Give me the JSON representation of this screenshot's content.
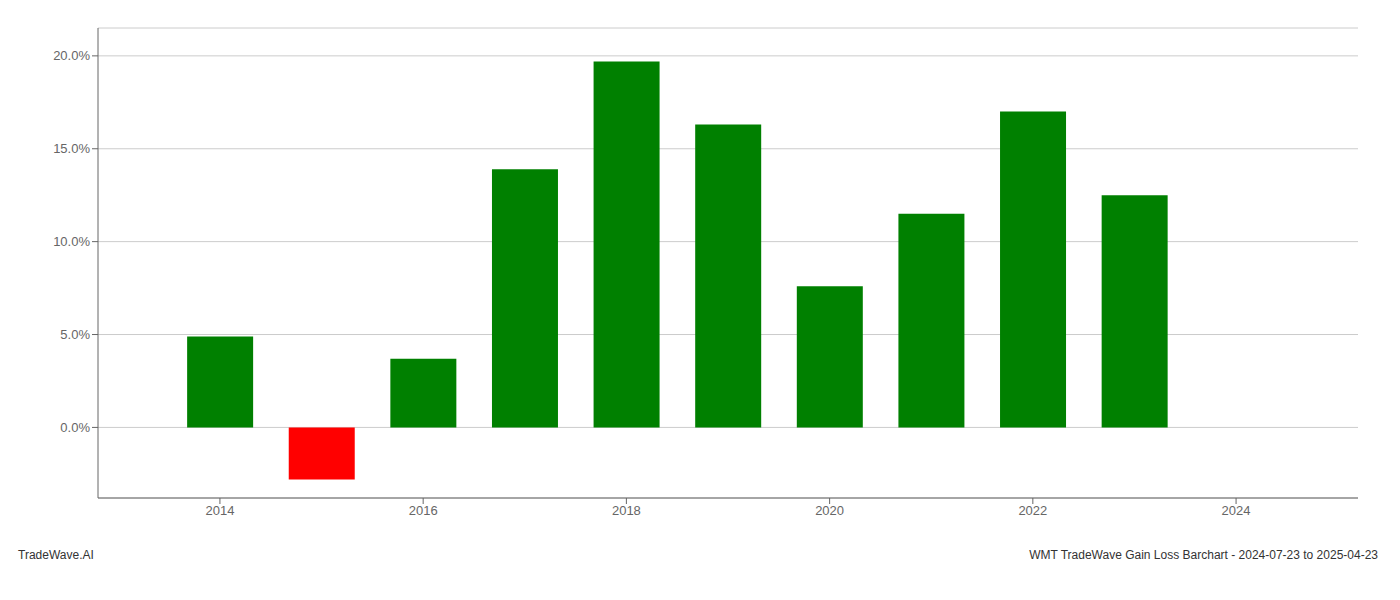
{
  "chart_data": {
    "type": "bar",
    "x": [
      2014,
      2015,
      2016,
      2017,
      2018,
      2019,
      2020,
      2021,
      2022,
      2023
    ],
    "values": [
      0.049,
      -0.028,
      0.037,
      0.139,
      0.197,
      0.163,
      0.076,
      0.115,
      0.17,
      0.125
    ],
    "colors": [
      "#008000",
      "#ff0000",
      "#008000",
      "#008000",
      "#008000",
      "#008000",
      "#008000",
      "#008000",
      "#008000",
      "#008000"
    ],
    "xlim": [
      2012.8,
      2025.2
    ],
    "xticks": [
      2014,
      2016,
      2018,
      2020,
      2022,
      2024
    ],
    "ylim": [
      -0.038,
      0.215
    ],
    "yticks": [
      {
        "value": 0.0,
        "label": "0.0%"
      },
      {
        "value": 0.05,
        "label": "5.0%"
      },
      {
        "value": 0.1,
        "label": "10.0%"
      },
      {
        "value": 0.15,
        "label": "15.0%"
      },
      {
        "value": 0.2,
        "label": "20.0%"
      }
    ],
    "grid": true,
    "annotations": [
      "TradeWave.AI",
      "WMT TradeWave Gain Loss Barchart - 2024-07-23 to 2025-04-23"
    ]
  }
}
